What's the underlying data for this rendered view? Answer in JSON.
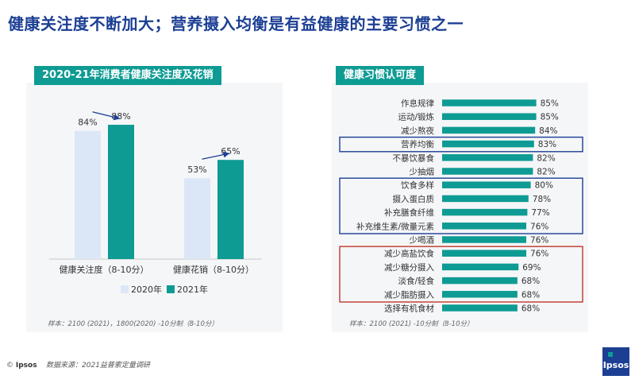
{
  "title": "健康关注度不断加大；营养摄入均衡是有益健康的主要习惯之一",
  "left": {
    "heading": "2020-21年消费者健康关注度及花销",
    "sample": "样本：2100 (2021)，1800(2020) -10分制（8-10分）"
  },
  "right": {
    "heading": "健康习惯认可度",
    "sample": "样本：2100 (2021) -10分制（8-10分）"
  },
  "footer": {
    "brand": "Ipsos",
    "source": "数据来源：2021益普索定量调研",
    "copyright": "©"
  },
  "logo": "Ipsos",
  "colors": {
    "accent": "#0e9b93",
    "light": "#dbe7f7",
    "navy": "#1c3f94",
    "red": "#c0392b"
  },
  "chart_data": [
    {
      "type": "bar",
      "categories": [
        "健康关注度（8-10分）",
        "健康花销（8-10分）"
      ],
      "series": [
        {
          "name": "2020年",
          "values": [
            84,
            53
          ]
        },
        {
          "name": "2021年",
          "values": [
            88,
            65
          ]
        }
      ],
      "value_labels": [
        "84%",
        "88%",
        "53%",
        "65%"
      ],
      "unit": "%",
      "ylim": [
        0,
        100
      ],
      "legend": "bottom"
    },
    {
      "type": "bar",
      "orientation": "horizontal",
      "categories": [
        "作息规律",
        "运动/锻炼",
        "减少熬夜",
        "营养均衡",
        "不暴饮暴食",
        "少抽烟",
        "饮食多样",
        "摄入蛋白质",
        "补充膳食纤维",
        "补充维生素/微量元素",
        "少喝酒",
        "减少高盐饮食",
        "减少糖分摄入",
        "淡食/轻食",
        "减少脂肪摄入",
        "选择有机食材"
      ],
      "values": [
        85,
        85,
        84,
        83,
        82,
        82,
        80,
        78,
        77,
        76,
        76,
        76,
        69,
        68,
        68,
        68
      ],
      "value_labels": [
        "85%",
        "85%",
        "84%",
        "83%",
        "82%",
        "82%",
        "80%",
        "78%",
        "77%",
        "76%",
        "76%",
        "76%",
        "69%",
        "68%",
        "68%",
        "68%"
      ],
      "unit": "%",
      "xlim": [
        0,
        100
      ],
      "highlight_groups": [
        {
          "color": "navy",
          "items": [
            3
          ]
        },
        {
          "color": "navy",
          "items": [
            6,
            7,
            8,
            9
          ]
        },
        {
          "color": "red",
          "items": [
            11,
            12,
            13,
            14
          ]
        }
      ]
    }
  ]
}
